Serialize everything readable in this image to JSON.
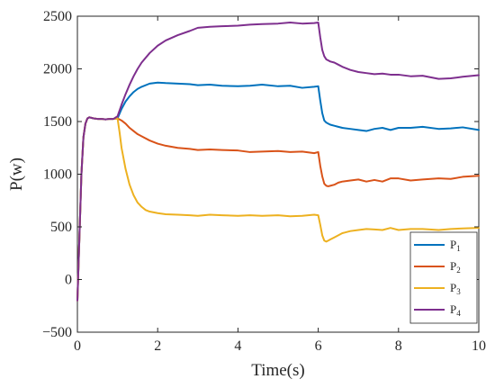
{
  "chart_data": {
    "type": "line",
    "title": "",
    "xlabel": "Time(s)",
    "ylabel": "P(w)",
    "xlim": [
      0,
      10
    ],
    "ylim": [
      -500,
      2500
    ],
    "xticks": [
      0,
      2,
      4,
      6,
      8,
      10
    ],
    "yticks": [
      -500,
      0,
      500,
      1000,
      1500,
      2000,
      2500
    ],
    "xtick_labels": [
      "0",
      "2",
      "4",
      "6",
      "8",
      "10"
    ],
    "ytick_labels": [
      "−500",
      "0",
      "500",
      "1000",
      "1500",
      "2000",
      "2500"
    ],
    "grid": false,
    "legend_position": "bottom-right",
    "series": [
      {
        "name": "P1",
        "label_main": "P",
        "label_sub": "1",
        "color": "#0072BD",
        "x": [
          0,
          0.05,
          0.1,
          0.15,
          0.2,
          0.25,
          0.3,
          0.4,
          0.5,
          0.6,
          0.7,
          0.8,
          0.9,
          1.0,
          1.1,
          1.2,
          1.3,
          1.4,
          1.5,
          1.6,
          1.8,
          2.0,
          2.2,
          2.5,
          2.8,
          3.0,
          3.3,
          3.6,
          4.0,
          4.3,
          4.6,
          5.0,
          5.3,
          5.6,
          5.9,
          6.0,
          6.05,
          6.1,
          6.15,
          6.2,
          6.25,
          6.3,
          6.4,
          6.5,
          6.6,
          6.8,
          7.0,
          7.2,
          7.4,
          7.6,
          7.8,
          8.0,
          8.3,
          8.6,
          9.0,
          9.3,
          9.6,
          10.0
        ],
        "y": [
          -200,
          400,
          1000,
          1350,
          1480,
          1530,
          1540,
          1530,
          1525,
          1525,
          1520,
          1525,
          1525,
          1530,
          1620,
          1690,
          1740,
          1780,
          1810,
          1830,
          1860,
          1870,
          1865,
          1860,
          1855,
          1845,
          1850,
          1840,
          1835,
          1840,
          1850,
          1835,
          1840,
          1820,
          1830,
          1835,
          1700,
          1580,
          1510,
          1490,
          1480,
          1470,
          1460,
          1450,
          1440,
          1430,
          1420,
          1410,
          1430,
          1440,
          1420,
          1440,
          1440,
          1450,
          1430,
          1435,
          1445,
          1420
        ]
      },
      {
        "name": "P2",
        "label_main": "P",
        "label_sub": "2",
        "color": "#D95319",
        "x": [
          0,
          0.05,
          0.1,
          0.15,
          0.2,
          0.25,
          0.3,
          0.4,
          0.5,
          0.6,
          0.7,
          0.8,
          0.9,
          1.0,
          1.1,
          1.2,
          1.3,
          1.4,
          1.5,
          1.6,
          1.8,
          2.0,
          2.2,
          2.5,
          2.8,
          3.0,
          3.3,
          3.6,
          4.0,
          4.3,
          4.6,
          5.0,
          5.3,
          5.6,
          5.9,
          6.0,
          6.05,
          6.1,
          6.15,
          6.2,
          6.25,
          6.3,
          6.4,
          6.5,
          6.6,
          6.8,
          7.0,
          7.2,
          7.4,
          7.6,
          7.8,
          8.0,
          8.3,
          8.6,
          9.0,
          9.3,
          9.6,
          10.0
        ],
        "y": [
          -200,
          400,
          1000,
          1350,
          1480,
          1530,
          1540,
          1530,
          1525,
          1525,
          1520,
          1525,
          1525,
          1530,
          1510,
          1480,
          1440,
          1410,
          1380,
          1360,
          1320,
          1290,
          1270,
          1250,
          1240,
          1230,
          1235,
          1230,
          1225,
          1210,
          1215,
          1220,
          1210,
          1215,
          1200,
          1210,
          1080,
          980,
          910,
          890,
          885,
          890,
          900,
          920,
          930,
          940,
          950,
          930,
          945,
          930,
          960,
          960,
          940,
          950,
          960,
          955,
          975,
          985
        ]
      },
      {
        "name": "P3",
        "label_main": "P",
        "label_sub": "3",
        "color": "#EDB120",
        "x": [
          0,
          0.05,
          0.1,
          0.15,
          0.2,
          0.25,
          0.3,
          0.4,
          0.5,
          0.6,
          0.7,
          0.8,
          0.9,
          1.0,
          1.05,
          1.1,
          1.2,
          1.3,
          1.4,
          1.5,
          1.6,
          1.7,
          1.8,
          2.0,
          2.2,
          2.5,
          2.8,
          3.0,
          3.3,
          3.6,
          4.0,
          4.3,
          4.6,
          5.0,
          5.3,
          5.6,
          5.9,
          6.0,
          6.05,
          6.1,
          6.15,
          6.2,
          6.25,
          6.3,
          6.4,
          6.5,
          6.6,
          6.8,
          7.0,
          7.2,
          7.4,
          7.6,
          7.8,
          8.0,
          8.3,
          8.6,
          9.0,
          9.3,
          9.6,
          10.0
        ],
        "y": [
          -200,
          400,
          1000,
          1350,
          1480,
          1530,
          1540,
          1530,
          1525,
          1525,
          1520,
          1525,
          1525,
          1530,
          1400,
          1250,
          1050,
          900,
          800,
          730,
          690,
          660,
          645,
          630,
          620,
          615,
          610,
          605,
          615,
          610,
          605,
          610,
          605,
          610,
          600,
          605,
          615,
          610,
          520,
          420,
          370,
          360,
          370,
          380,
          400,
          420,
          440,
          460,
          470,
          480,
          475,
          470,
          490,
          470,
          480,
          480,
          470,
          480,
          485,
          490
        ]
      },
      {
        "name": "P4",
        "label_main": "P",
        "label_sub": "4",
        "color": "#7E2F8E",
        "x": [
          0,
          0.05,
          0.1,
          0.15,
          0.2,
          0.25,
          0.3,
          0.4,
          0.5,
          0.6,
          0.7,
          0.8,
          0.9,
          1.0,
          1.1,
          1.2,
          1.3,
          1.4,
          1.5,
          1.6,
          1.8,
          2.0,
          2.2,
          2.5,
          2.8,
          3.0,
          3.3,
          3.6,
          4.0,
          4.3,
          4.6,
          5.0,
          5.3,
          5.6,
          5.9,
          6.0,
          6.05,
          6.1,
          6.15,
          6.2,
          6.25,
          6.3,
          6.4,
          6.5,
          6.6,
          6.8,
          7.0,
          7.2,
          7.4,
          7.6,
          7.8,
          8.0,
          8.3,
          8.6,
          9.0,
          9.3,
          9.6,
          10.0
        ],
        "y": [
          -200,
          400,
          1000,
          1350,
          1480,
          1530,
          1540,
          1530,
          1525,
          1525,
          1520,
          1525,
          1525,
          1550,
          1660,
          1760,
          1850,
          1930,
          2000,
          2060,
          2150,
          2220,
          2270,
          2320,
          2360,
          2390,
          2400,
          2405,
          2410,
          2420,
          2425,
          2430,
          2440,
          2430,
          2435,
          2440,
          2300,
          2180,
          2120,
          2090,
          2080,
          2070,
          2060,
          2040,
          2020,
          1990,
          1970,
          1960,
          1950,
          1955,
          1945,
          1945,
          1930,
          1935,
          1905,
          1910,
          1925,
          1940
        ]
      }
    ]
  }
}
